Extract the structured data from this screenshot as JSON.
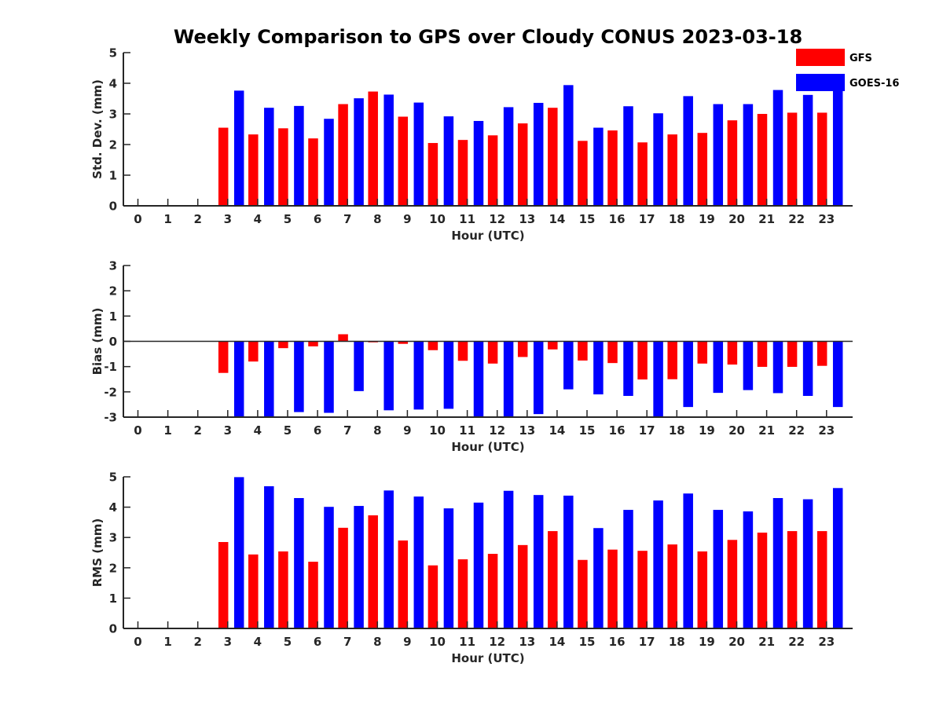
{
  "figure": {
    "title": "Weekly Comparison to GPS over Cloudy CONUS 2023-03-18"
  },
  "legend": {
    "placement": "top-right",
    "entries": [
      {
        "label": "GFS",
        "color": "#ff0000"
      },
      {
        "label": "GOES-16",
        "color": "#0000ff"
      }
    ]
  },
  "chart_data": [
    {
      "type": "bar",
      "xlabel": "Hour (UTC)",
      "ylabel": "Std. Dev. (mm)",
      "ylim": [
        0,
        5
      ],
      "yticks": [
        0,
        1,
        2,
        3,
        4,
        5
      ],
      "categories": [
        "0",
        "1",
        "2",
        "3",
        "4",
        "5",
        "6",
        "7",
        "8",
        "9",
        "10",
        "11",
        "12",
        "13",
        "14",
        "15",
        "16",
        "17",
        "18",
        "19",
        "20",
        "21",
        "22",
        "23"
      ],
      "series": [
        {
          "name": "GFS",
          "color": "#ff0000",
          "values": [
            0,
            0,
            0,
            2.55,
            2.33,
            2.53,
            2.2,
            3.32,
            3.73,
            2.91,
            2.05,
            2.15,
            2.3,
            2.69,
            3.2,
            2.12,
            2.46,
            2.07,
            2.33,
            2.38,
            2.79,
            3.0,
            3.04,
            3.04
          ]
        },
        {
          "name": "GOES-16",
          "color": "#0000ff",
          "values": [
            0,
            0,
            0,
            3.76,
            3.2,
            3.26,
            2.84,
            3.51,
            3.63,
            3.37,
            2.92,
            2.77,
            3.22,
            3.36,
            3.94,
            2.55,
            3.25,
            3.02,
            3.58,
            3.32,
            3.32,
            3.78,
            3.62,
            3.8
          ]
        }
      ],
      "grid": false
    },
    {
      "type": "bar",
      "xlabel": "Hour (UTC)",
      "ylabel": "Bias (mm)",
      "ylim": [
        -3,
        3
      ],
      "yticks": [
        -3,
        -2,
        -1,
        0,
        1,
        2,
        3
      ],
      "categories": [
        "0",
        "1",
        "2",
        "3",
        "4",
        "5",
        "6",
        "7",
        "8",
        "9",
        "10",
        "11",
        "12",
        "13",
        "14",
        "15",
        "16",
        "17",
        "18",
        "19",
        "20",
        "21",
        "22",
        "23"
      ],
      "series": [
        {
          "name": "GFS",
          "color": "#ff0000",
          "values": [
            0,
            0,
            0,
            -1.25,
            -0.8,
            -0.27,
            -0.2,
            0.28,
            -0.04,
            -0.1,
            -0.35,
            -0.77,
            -0.88,
            -0.62,
            -0.32,
            -0.76,
            -0.86,
            -1.51,
            -1.5,
            -0.88,
            -0.92,
            -1.01,
            -1.01,
            -0.97
          ]
        },
        {
          "name": "GOES-16",
          "color": "#0000ff",
          "values": [
            0,
            0,
            0,
            -3.0,
            -3.0,
            -2.8,
            -2.83,
            -1.97,
            -2.73,
            -2.7,
            -2.67,
            -3.0,
            -3.0,
            -2.88,
            -1.9,
            -2.1,
            -2.16,
            -2.97,
            -2.6,
            -2.04,
            -1.93,
            -2.05,
            -2.16,
            -2.6
          ]
        }
      ],
      "grid": false
    },
    {
      "type": "bar",
      "xlabel": "Hour (UTC)",
      "ylabel": "RMS (mm)",
      "ylim": [
        0,
        5
      ],
      "yticks": [
        0,
        1,
        2,
        3,
        4,
        5
      ],
      "categories": [
        "0",
        "1",
        "2",
        "3",
        "4",
        "5",
        "6",
        "7",
        "8",
        "9",
        "10",
        "11",
        "12",
        "13",
        "14",
        "15",
        "16",
        "17",
        "18",
        "19",
        "20",
        "21",
        "22",
        "23"
      ],
      "series": [
        {
          "name": "GFS",
          "color": "#ff0000",
          "values": [
            0,
            0,
            0,
            2.85,
            2.44,
            2.54,
            2.2,
            3.32,
            3.73,
            2.9,
            2.08,
            2.28,
            2.46,
            2.75,
            3.21,
            2.26,
            2.6,
            2.56,
            2.77,
            2.54,
            2.92,
            3.16,
            3.21,
            3.21
          ]
        },
        {
          "name": "GOES-16",
          "color": "#0000ff",
          "values": [
            0,
            0,
            0,
            4.99,
            4.69,
            4.3,
            4.01,
            4.04,
            4.55,
            4.35,
            3.96,
            4.15,
            4.54,
            4.4,
            4.38,
            3.31,
            3.91,
            4.22,
            4.45,
            3.91,
            3.86,
            4.3,
            4.26,
            4.63
          ]
        }
      ],
      "grid": false
    }
  ]
}
